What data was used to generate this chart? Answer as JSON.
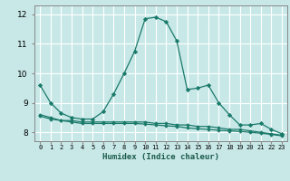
{
  "xlabel": "Humidex (Indice chaleur)",
  "background_color": "#c8e8e8",
  "grid_color": "#ffffff",
  "line_color": "#1a7a6a",
  "x_values": [
    0,
    1,
    2,
    3,
    4,
    5,
    6,
    7,
    8,
    9,
    10,
    11,
    12,
    13,
    14,
    15,
    16,
    17,
    18,
    19,
    20,
    21,
    22,
    23
  ],
  "line1": [
    9.6,
    9.0,
    8.65,
    8.5,
    8.45,
    8.45,
    8.7,
    9.3,
    10.0,
    10.75,
    11.85,
    11.9,
    11.75,
    11.1,
    9.45,
    9.5,
    9.6,
    9.0,
    8.6,
    8.25,
    8.25,
    8.3,
    8.1,
    7.95
  ],
  "line2": [
    8.6,
    8.5,
    8.4,
    8.4,
    8.35,
    8.35,
    8.35,
    8.35,
    8.35,
    8.35,
    8.35,
    8.3,
    8.3,
    8.25,
    8.25,
    8.2,
    8.2,
    8.15,
    8.1,
    8.1,
    8.05,
    8.0,
    7.95,
    7.9
  ],
  "line3": [
    8.55,
    8.45,
    8.4,
    8.35,
    8.3,
    8.3,
    8.3,
    8.3,
    8.3,
    8.3,
    8.28,
    8.25,
    8.22,
    8.2,
    8.15,
    8.12,
    8.1,
    8.07,
    8.05,
    8.03,
    8.0,
    7.97,
    7.93,
    7.88
  ],
  "ylim": [
    7.7,
    12.3
  ],
  "yticks": [
    8,
    9,
    10,
    11,
    12
  ],
  "xtick_labels": [
    "0",
    "1",
    "2",
    "3",
    "4",
    "5",
    "6",
    "7",
    "8",
    "9",
    "10",
    "11",
    "12",
    "13",
    "14",
    "15",
    "16",
    "17",
    "18",
    "19",
    "20",
    "21",
    "22",
    "23"
  ]
}
